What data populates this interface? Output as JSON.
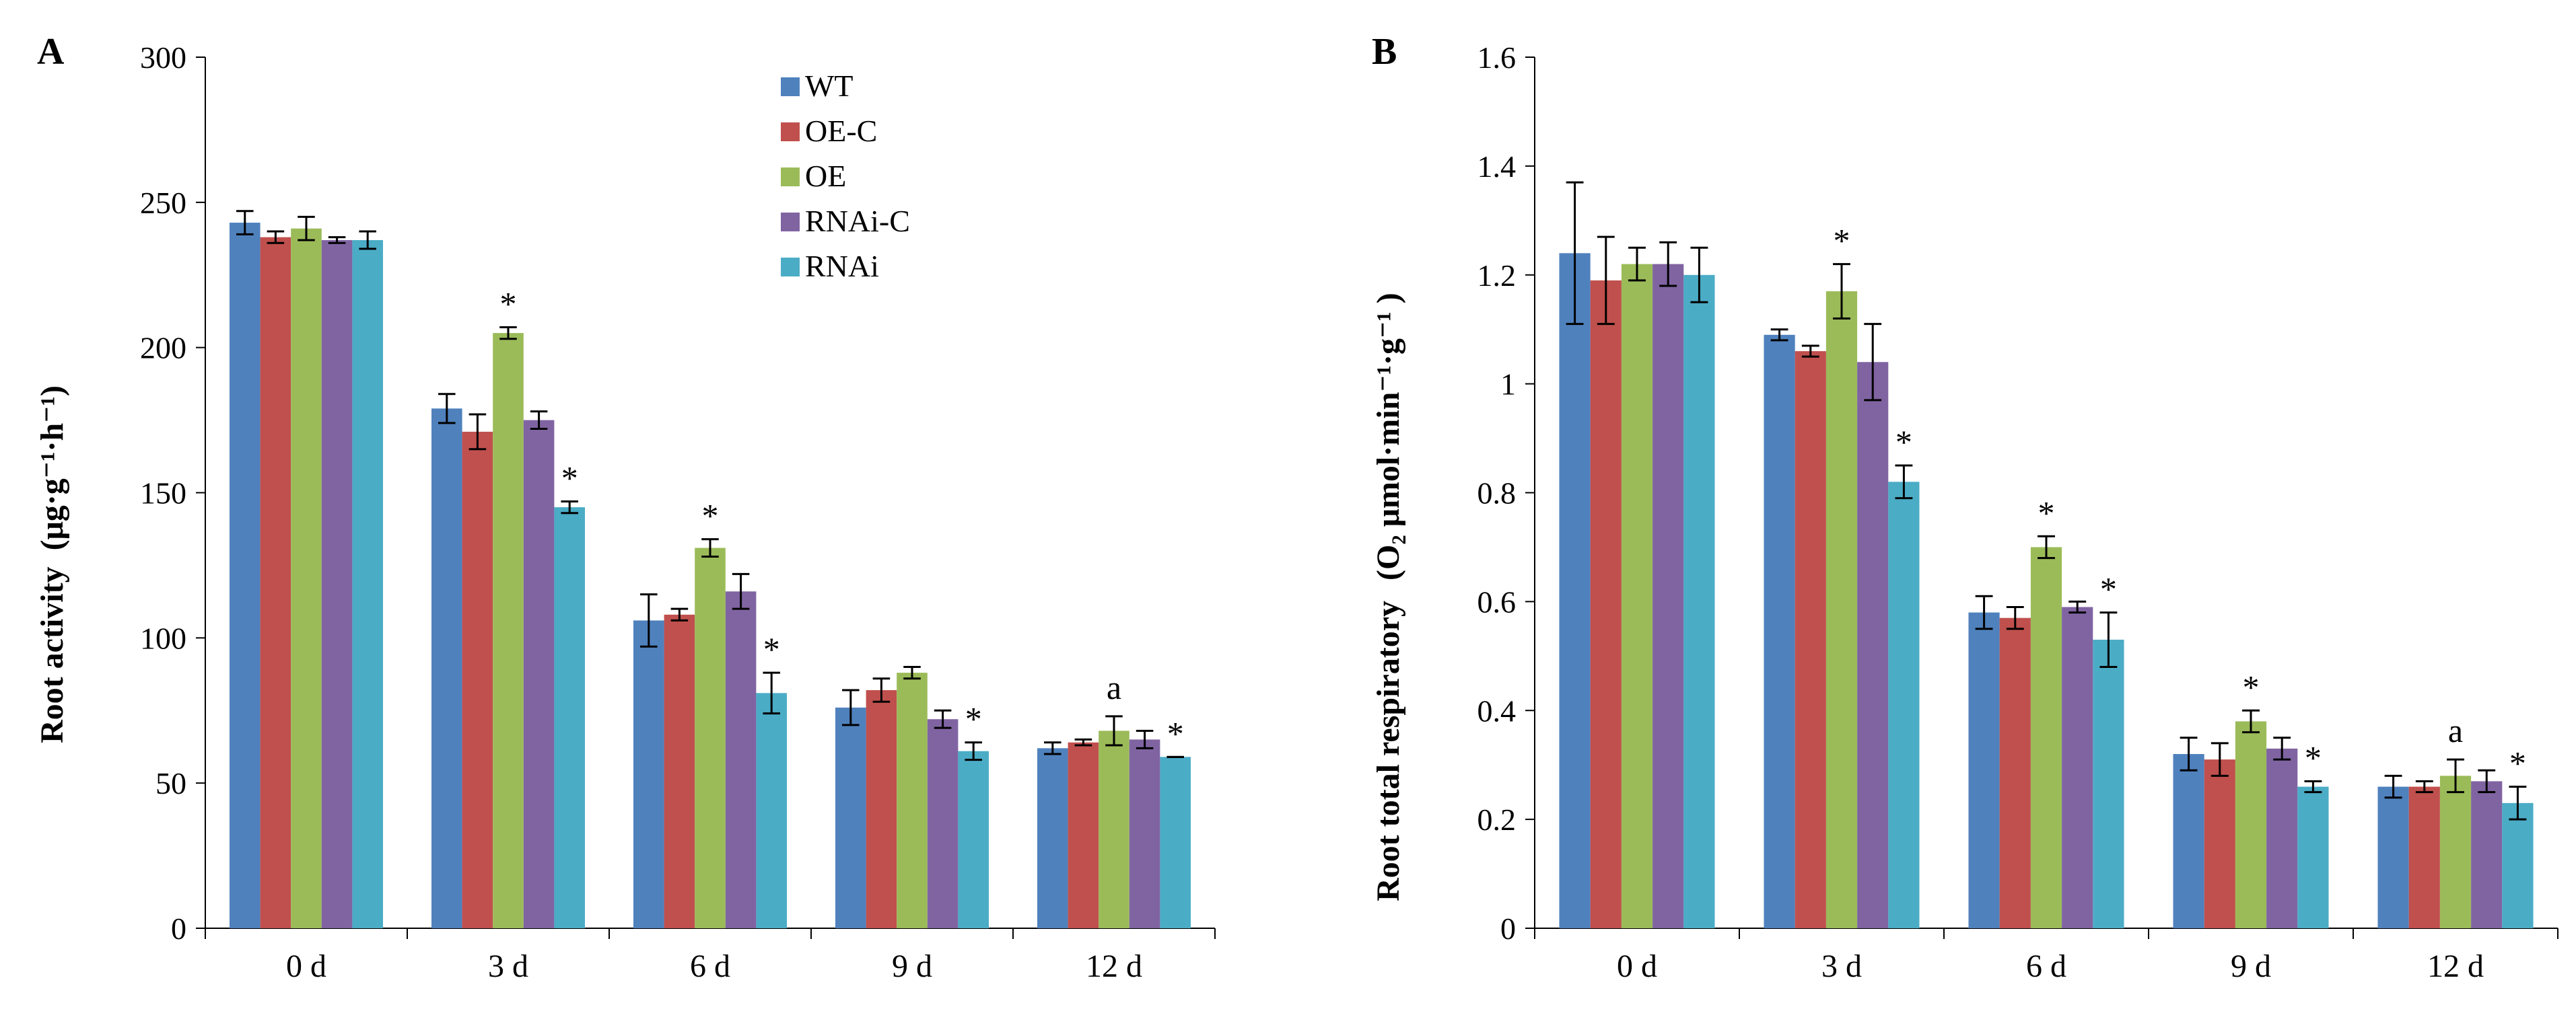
{
  "chart_data": [
    {
      "panel": "A",
      "type": "bar",
      "ylabel_main": "Root activity",
      "ylabel_unit": "(μg·g⁻¹·h⁻¹)",
      "categories": [
        "0 d",
        "3 d",
        "6 d",
        "9 d",
        "12 d"
      ],
      "yticks": [
        "0",
        "50",
        "100",
        "150",
        "200",
        "250",
        "300"
      ],
      "ylim": [
        0,
        300
      ],
      "series": [
        {
          "name": "WT",
          "color": "#4F81BD",
          "values": [
            243,
            179,
            106,
            76,
            62
          ],
          "errors": [
            4,
            5,
            9,
            6,
            2
          ]
        },
        {
          "name": "OE-C",
          "color": "#C0504D",
          "values": [
            238,
            171,
            108,
            82,
            64
          ],
          "errors": [
            2,
            6,
            2,
            4,
            1
          ]
        },
        {
          "name": "OE",
          "color": "#9BBB59",
          "values": [
            241,
            205,
            131,
            88,
            68
          ],
          "errors": [
            4,
            2,
            3,
            2,
            5
          ]
        },
        {
          "name": "RNAi-C",
          "color": "#8064A2",
          "values": [
            237,
            175,
            116,
            72,
            65
          ],
          "errors": [
            1,
            3,
            6,
            3,
            3
          ]
        },
        {
          "name": "RNAi",
          "color": "#4BACC6",
          "values": [
            237,
            145,
            81,
            61,
            59
          ],
          "errors": [
            3,
            2,
            7,
            3,
            0
          ]
        }
      ],
      "annotations": [
        {
          "category": 1,
          "series": 2,
          "text": "*"
        },
        {
          "category": 1,
          "series": 4,
          "text": "*"
        },
        {
          "category": 2,
          "series": 2,
          "text": "*"
        },
        {
          "category": 2,
          "series": 4,
          "text": "*"
        },
        {
          "category": 3,
          "series": 4,
          "text": "*"
        },
        {
          "category": 4,
          "series": 2,
          "text": "a"
        },
        {
          "category": 4,
          "series": 4,
          "text": "*"
        }
      ],
      "legend": [
        "WT",
        "OE-C",
        "OE",
        "RNAi-C",
        "RNAi"
      ]
    },
    {
      "panel": "B",
      "type": "bar",
      "ylabel_main": "Root total respiratory",
      "ylabel_unit": "(O₂ μmol·min⁻¹·g⁻¹ )",
      "categories": [
        "0 d",
        "3 d",
        "6 d",
        "9 d",
        "12 d"
      ],
      "yticks": [
        "0",
        "0.2",
        "0.4",
        "0.6",
        "0.8",
        "1",
        "1.2",
        "1.4",
        "1.6"
      ],
      "ylim": [
        0,
        1.6
      ],
      "series": [
        {
          "name": "WT",
          "color": "#4F81BD",
          "values": [
            1.24,
            1.09,
            0.58,
            0.32,
            0.26
          ],
          "errors": [
            0.13,
            0.01,
            0.03,
            0.03,
            0.02
          ]
        },
        {
          "name": "OE-C",
          "color": "#C0504D",
          "values": [
            1.19,
            1.06,
            0.57,
            0.31,
            0.26
          ],
          "errors": [
            0.08,
            0.01,
            0.02,
            0.03,
            0.01
          ]
        },
        {
          "name": "OE",
          "color": "#9BBB59",
          "values": [
            1.22,
            1.17,
            0.7,
            0.38,
            0.28
          ],
          "errors": [
            0.03,
            0.05,
            0.02,
            0.02,
            0.03
          ]
        },
        {
          "name": "RNAi-C",
          "color": "#8064A2",
          "values": [
            1.22,
            1.04,
            0.59,
            0.33,
            0.27
          ],
          "errors": [
            0.04,
            0.07,
            0.01,
            0.02,
            0.02
          ]
        },
        {
          "name": "RNAi",
          "color": "#4BACC6",
          "values": [
            1.2,
            0.82,
            0.53,
            0.26,
            0.23
          ],
          "errors": [
            0.05,
            0.03,
            0.05,
            0.01,
            0.03
          ]
        }
      ],
      "annotations": [
        {
          "category": 1,
          "series": 2,
          "text": "*"
        },
        {
          "category": 1,
          "series": 4,
          "text": "*"
        },
        {
          "category": 2,
          "series": 2,
          "text": "*"
        },
        {
          "category": 2,
          "series": 4,
          "text": "*"
        },
        {
          "category": 3,
          "series": 2,
          "text": "*"
        },
        {
          "category": 3,
          "series": 4,
          "text": "*"
        },
        {
          "category": 4,
          "series": 2,
          "text": "a"
        },
        {
          "category": 4,
          "series": 4,
          "text": "*"
        }
      ]
    }
  ]
}
